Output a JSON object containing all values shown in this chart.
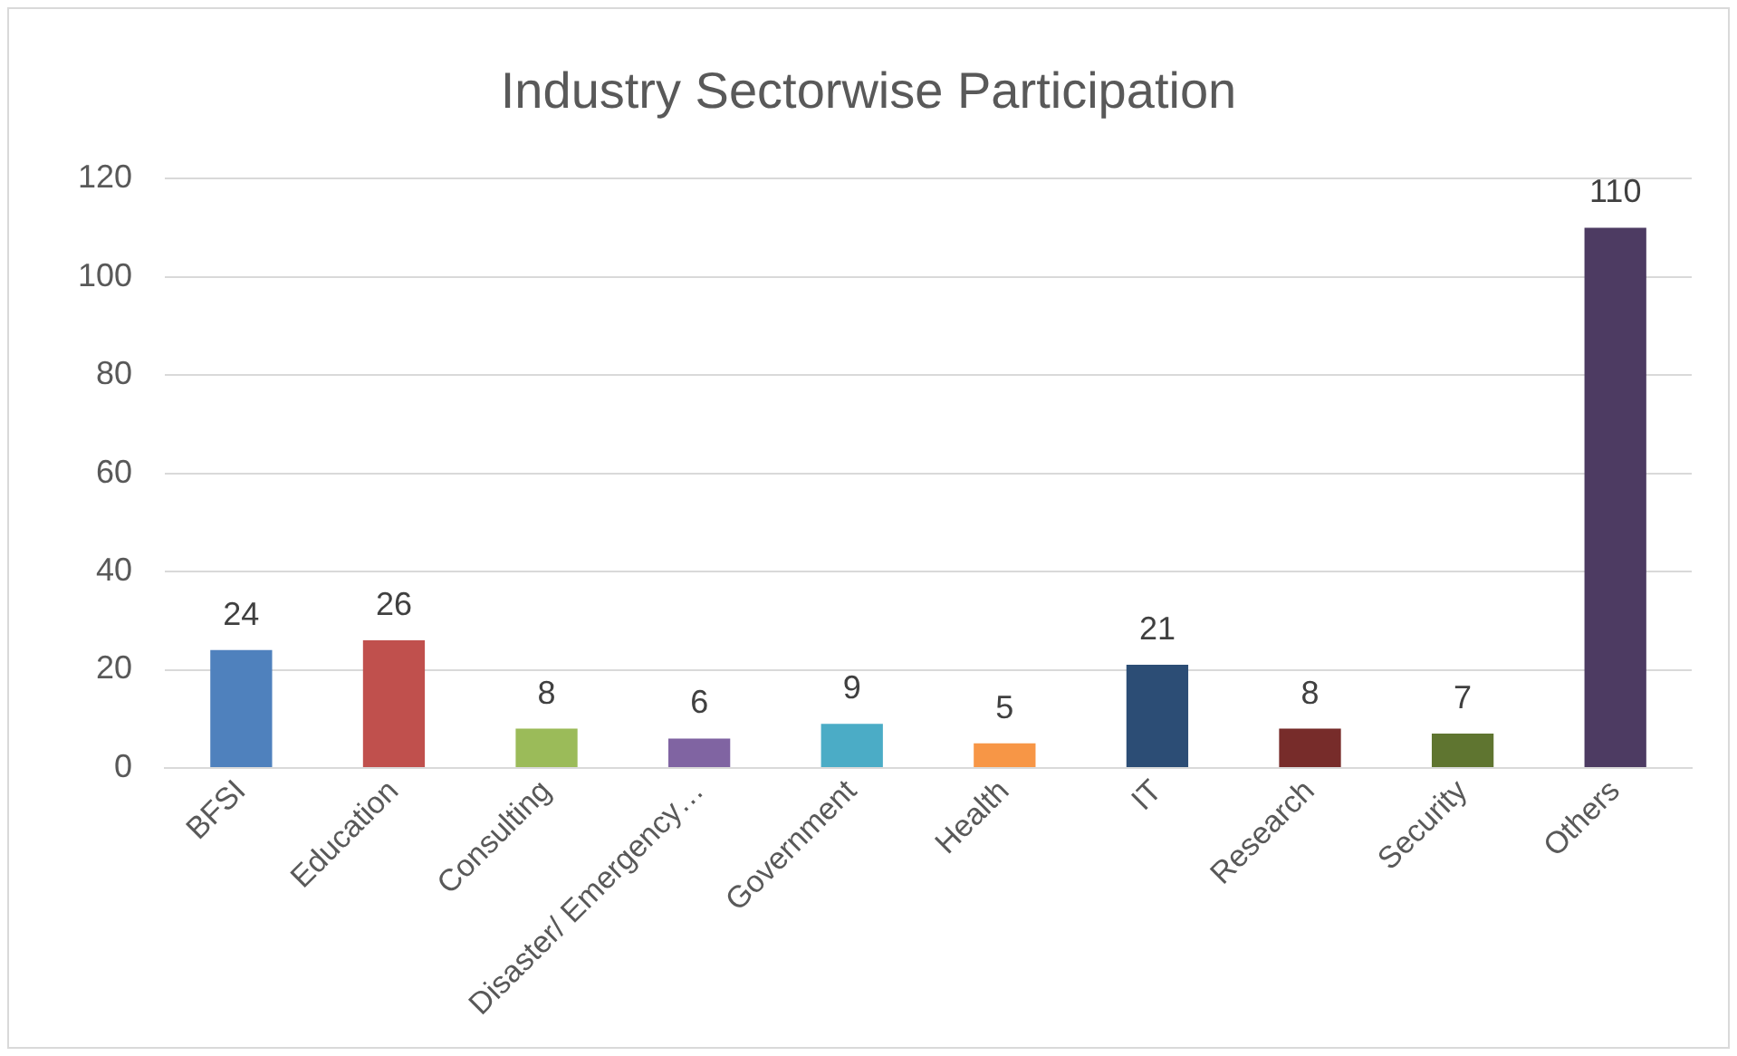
{
  "chart_data": {
    "type": "bar",
    "title": "Industry Sectorwise Participation",
    "categories": [
      "BFSI",
      "Education",
      "Consulting",
      "Disaster/ Emergency…",
      "Government",
      "Health",
      "IT",
      "Research",
      "Security",
      "Others"
    ],
    "values": [
      24,
      26,
      8,
      6,
      9,
      5,
      21,
      8,
      7,
      110
    ],
    "colors": [
      "#4f81bd",
      "#c0504d",
      "#9bbb59",
      "#8064a2",
      "#4bacc6",
      "#f79646",
      "#2c4d75",
      "#772c2a",
      "#5f7530",
      "#4d3b62"
    ],
    "ylim": [
      0,
      120
    ],
    "yticks": [
      0,
      20,
      40,
      60,
      80,
      100,
      120
    ],
    "grid": "y",
    "legend": false,
    "data_labels": true
  }
}
